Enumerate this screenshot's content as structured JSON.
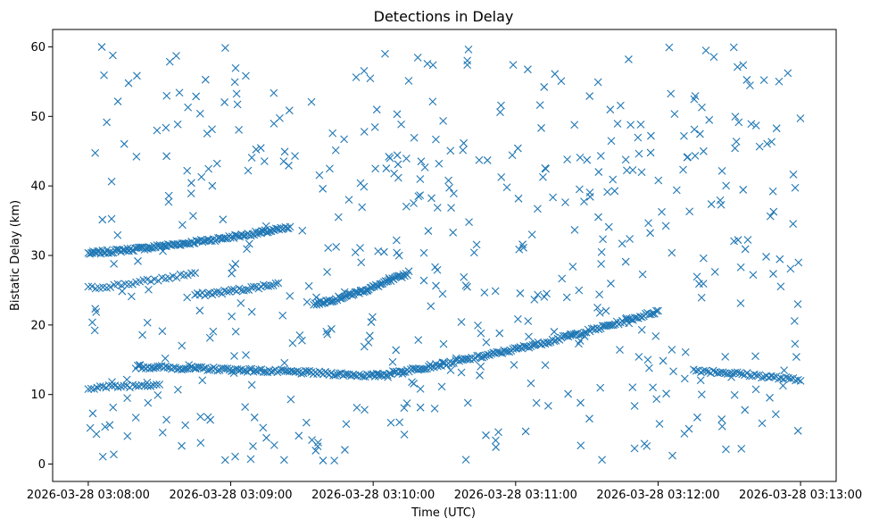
{
  "chart_data": {
    "type": "scatter",
    "title": "Detections in Delay",
    "xlabel": "Time (UTC)",
    "ylabel": "Bistatic Delay (km)",
    "x_start": "2026-03-28 03:07:45",
    "x_end": "2026-03-28 03:13:15",
    "xlim": [
      "2026-03-28 03:07:45",
      "2026-03-28 03:13:15"
    ],
    "ylim": [
      -2.5,
      62.5
    ],
    "xticks": [
      "2026-03-28 03:08:00",
      "2026-03-28 03:09:00",
      "2026-03-28 03:10:00",
      "2026-03-28 03:11:00",
      "2026-03-28 03:12:00",
      "2026-03-28 03:13:00"
    ],
    "yticks": [
      0,
      10,
      20,
      30,
      40,
      50,
      60
    ],
    "grid": false,
    "marker": "x",
    "color": "#1f77b4",
    "tracks": [
      {
        "start": "2026-03-28 03:08:00",
        "end": "2026-03-28 03:09:25",
        "start_delay": 30.3,
        "end_delay": 34.0,
        "points": 130
      },
      {
        "start": "2026-03-28 03:08:00",
        "end": "2026-03-28 03:08:45",
        "start_delay": 25.3,
        "end_delay": 27.5,
        "points": 30
      },
      {
        "start": "2026-03-28 03:08:45",
        "end": "2026-03-28 03:09:20",
        "start_delay": 24.3,
        "end_delay": 26.0,
        "points": 35
      },
      {
        "start": "2026-03-28 03:09:35",
        "end": "2026-03-28 03:10:15",
        "start_delay": 23.0,
        "end_delay": 27.5,
        "points": 70
      },
      {
        "start": "2026-03-28 03:08:20",
        "end": "2026-03-28 03:10:00",
        "start_delay": 14.0,
        "end_delay": 12.7,
        "points": 120
      },
      {
        "start": "2026-03-28 03:10:00",
        "end": "2026-03-28 03:12:00",
        "start_delay": 12.7,
        "end_delay": 22.0,
        "points": 160
      },
      {
        "start": "2026-03-28 03:12:15",
        "end": "2026-03-28 03:13:00",
        "start_delay": 13.5,
        "end_delay": 12.0,
        "points": 45
      },
      {
        "start": "2026-03-28 03:08:00",
        "end": "2026-03-28 03:08:30",
        "start_delay": 11.0,
        "end_delay": 11.5,
        "points": 25
      }
    ],
    "random_detections": 520
  }
}
